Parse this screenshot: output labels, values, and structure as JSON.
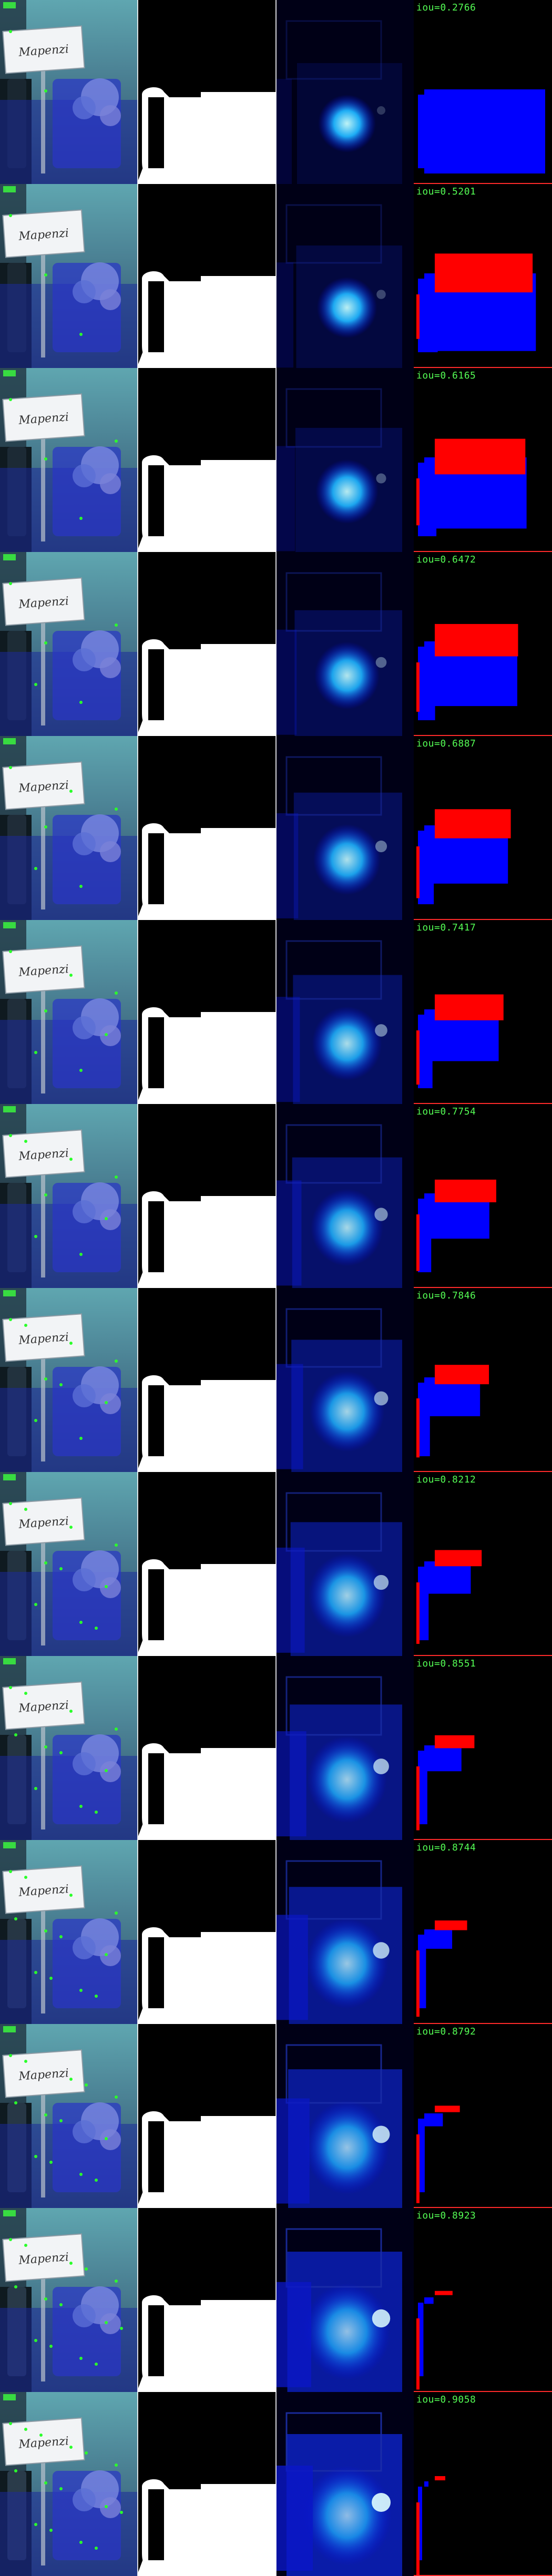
{
  "figure": {
    "card_text": "Mapenzi",
    "colors": {
      "foreground_mask": "#ffffff",
      "false_negative": "#0000ff",
      "false_positive": "#ff0000",
      "label_text": "#55ff55",
      "row_separator": "#ff2a2a"
    },
    "rows": [
      {
        "iou": "iou=0.2766"
      },
      {
        "iou": "iou=0.5201"
      },
      {
        "iou": "iou=0.6165"
      },
      {
        "iou": "iou=0.6472"
      },
      {
        "iou": "iou=0.6887"
      },
      {
        "iou": "iou=0.7417"
      },
      {
        "iou": "iou=0.7754"
      },
      {
        "iou": "iou=0.7846"
      },
      {
        "iou": "iou=0.8212"
      },
      {
        "iou": "iou=0.8551"
      },
      {
        "iou": "iou=0.8744"
      },
      {
        "iou": "iou=0.8792"
      },
      {
        "iou": "iou=0.8923"
      },
      {
        "iou": "iou=0.9058"
      }
    ]
  }
}
